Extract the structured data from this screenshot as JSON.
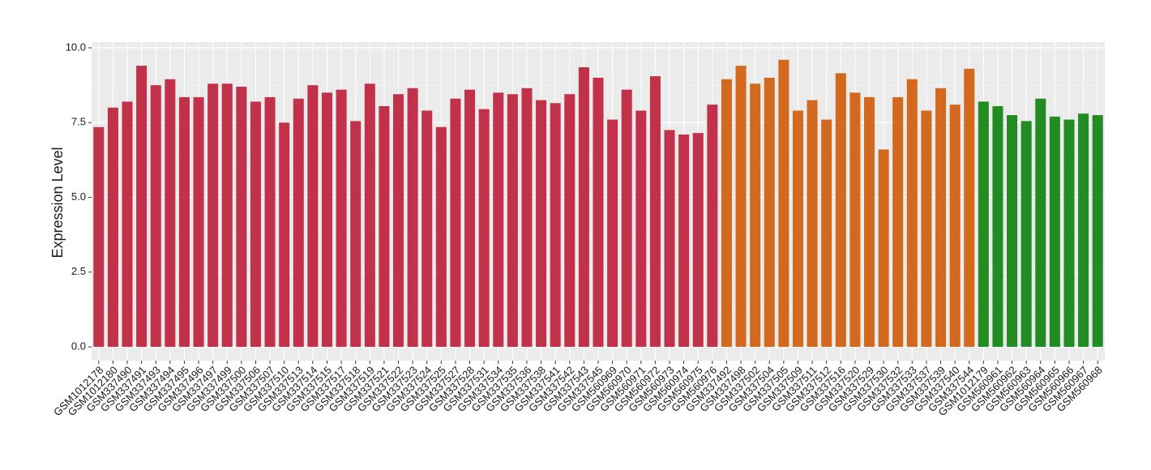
{
  "chart_data": {
    "type": "bar",
    "y_label": "Expression Level",
    "categories": [
      "GSM1012178",
      "GSM1012180",
      "GSM337490",
      "GSM337491",
      "GSM337493",
      "GSM337494",
      "GSM337495",
      "GSM337496",
      "GSM337497",
      "GSM337499",
      "GSM337500",
      "GSM337506",
      "GSM337507",
      "GSM337510",
      "GSM337513",
      "GSM337514",
      "GSM337515",
      "GSM337517",
      "GSM337518",
      "GSM337519",
      "GSM337521",
      "GSM337522",
      "GSM337523",
      "GSM337524",
      "GSM337525",
      "GSM337527",
      "GSM337528",
      "GSM337531",
      "GSM337534",
      "GSM337535",
      "GSM337536",
      "GSM337538",
      "GSM337541",
      "GSM337542",
      "GSM337543",
      "GSM337545",
      "GSM560969",
      "GSM560970",
      "GSM560971",
      "GSM560972",
      "GSM560973",
      "GSM560974",
      "GSM560975",
      "GSM560976",
      "GSM337492",
      "GSM337498",
      "GSM337502",
      "GSM337504",
      "GSM337505",
      "GSM337509",
      "GSM337511",
      "GSM337512",
      "GSM337516",
      "GSM337520",
      "GSM337529",
      "GSM337530",
      "GSM337532",
      "GSM337533",
      "GSM337537",
      "GSM337539",
      "GSM337540",
      "GSM337544",
      "GSM1012179",
      "GSM560961",
      "GSM560962",
      "GSM560963",
      "GSM560964",
      "GSM560965",
      "GSM560966",
      "GSM560967",
      "GSM560968"
    ],
    "values": [
      7.35,
      8.0,
      8.2,
      9.4,
      8.75,
      8.95,
      8.35,
      8.35,
      8.8,
      8.8,
      8.7,
      8.2,
      8.35,
      7.5,
      8.3,
      8.75,
      8.5,
      8.6,
      7.55,
      8.8,
      8.05,
      8.45,
      8.65,
      7.9,
      7.35,
      8.3,
      8.6,
      7.95,
      8.5,
      8.45,
      8.65,
      8.25,
      8.15,
      8.45,
      9.35,
      9.0,
      7.6,
      8.6,
      7.9,
      9.05,
      7.25,
      7.1,
      7.15,
      8.1,
      8.95,
      9.4,
      8.8,
      9.0,
      9.6,
      7.9,
      8.25,
      7.6,
      9.15,
      8.5,
      8.35,
      6.6,
      8.35,
      8.95,
      7.9,
      8.65,
      8.1,
      9.3,
      8.2,
      8.05,
      7.75,
      7.55,
      8.3,
      7.7,
      7.6,
      7.8,
      7.75
    ],
    "colors": [
      "#c1314a",
      "#c1314a",
      "#c1314a",
      "#c1314a",
      "#c1314a",
      "#c1314a",
      "#c1314a",
      "#c1314a",
      "#c1314a",
      "#c1314a",
      "#c1314a",
      "#c1314a",
      "#c1314a",
      "#c1314a",
      "#c1314a",
      "#c1314a",
      "#c1314a",
      "#c1314a",
      "#c1314a",
      "#c1314a",
      "#c1314a",
      "#c1314a",
      "#c1314a",
      "#c1314a",
      "#c1314a",
      "#c1314a",
      "#c1314a",
      "#c1314a",
      "#c1314a",
      "#c1314a",
      "#c1314a",
      "#c1314a",
      "#c1314a",
      "#c1314a",
      "#c1314a",
      "#c1314a",
      "#c1314a",
      "#c1314a",
      "#c1314a",
      "#c1314a",
      "#c1314a",
      "#c1314a",
      "#c1314a",
      "#c1314a",
      "#d2691e",
      "#d2691e",
      "#d2691e",
      "#d2691e",
      "#d2691e",
      "#d2691e",
      "#d2691e",
      "#d2691e",
      "#d2691e",
      "#d2691e",
      "#d2691e",
      "#d2691e",
      "#d2691e",
      "#d2691e",
      "#d2691e",
      "#d2691e",
      "#d2691e",
      "#d2691e",
      "#228b22",
      "#228b22",
      "#228b22",
      "#228b22",
      "#228b22",
      "#228b22",
      "#228b22",
      "#228b22",
      "#228b22"
    ],
    "ylim": [
      -0.46,
      10.19
    ],
    "yticks": [
      {
        "value": 0,
        "label": "0.0"
      },
      {
        "value": 2.5,
        "label": "2.5"
      },
      {
        "value": 5,
        "label": "5.0"
      },
      {
        "value": 7.5,
        "label": "7.5"
      },
      {
        "value": 10,
        "label": "10.0"
      }
    ],
    "grid": true
  }
}
